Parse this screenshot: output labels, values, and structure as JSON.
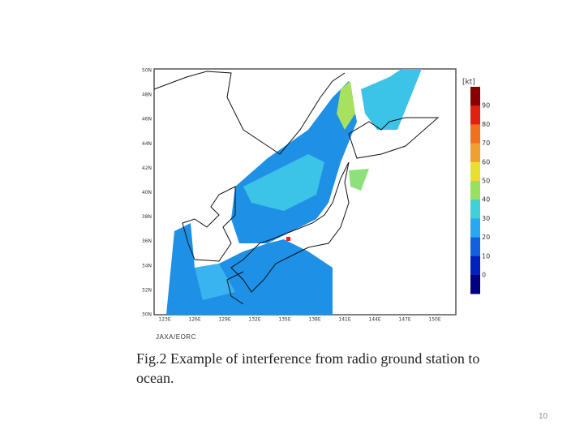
{
  "figure": {
    "lat_labels": [
      "50N",
      "48N",
      "46N",
      "44N",
      "42N",
      "40N",
      "38N",
      "36N",
      "34N",
      "32N",
      "30N"
    ],
    "lon_labels": [
      "123E",
      "126E",
      "129E",
      "132E",
      "135E",
      "138E",
      "141E",
      "144E",
      "147E",
      "150E"
    ],
    "colorbar": {
      "unit": "[kt]",
      "labels": [
        90,
        80,
        70,
        60,
        50,
        40,
        30,
        20,
        10,
        0
      ]
    },
    "credit": "JAXA/EORC",
    "caption": "Fig.2 Example of interference from radio ground station to ocean."
  },
  "page_number": "10"
}
